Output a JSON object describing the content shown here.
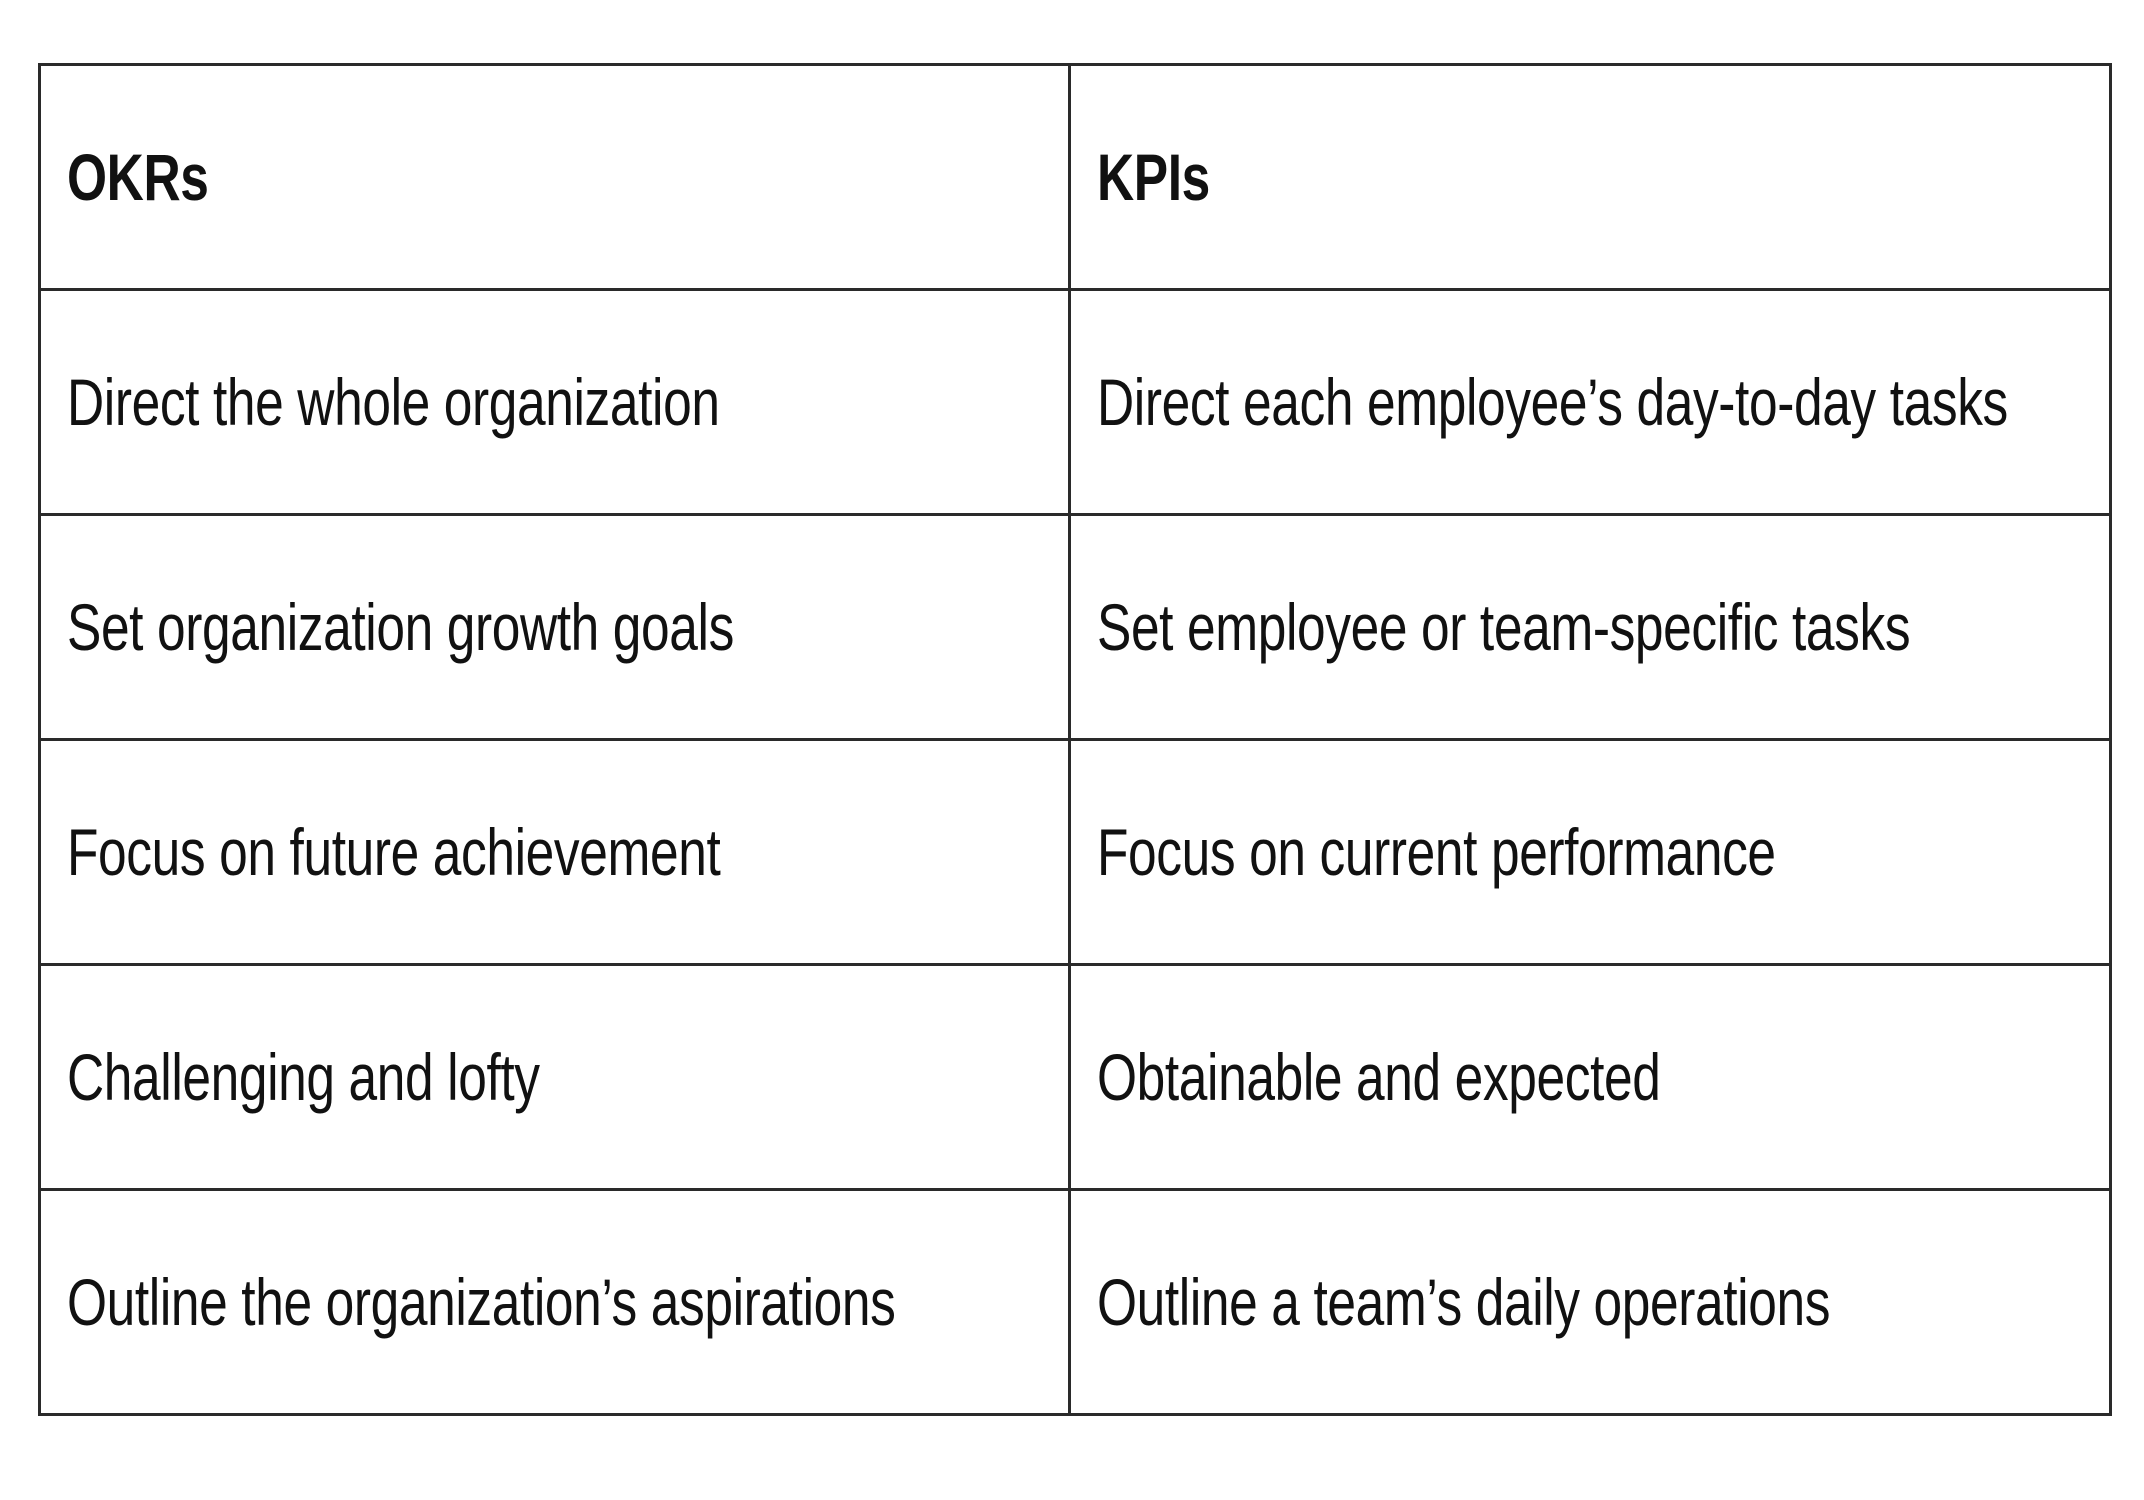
{
  "table": {
    "headers": [
      "OKRs",
      "KPIs"
    ],
    "rows": [
      [
        "Direct the whole organization",
        "Direct each employee’s day-to-day tasks"
      ],
      [
        "Set organization growth goals",
        "Set employee or team-specific tasks"
      ],
      [
        "Focus on future achievement",
        "Focus on current performance"
      ],
      [
        "Challenging and lofty",
        "Obtainable and expected"
      ],
      [
        "Outline the organization’s aspirations",
        "Outline a team’s daily operations"
      ]
    ]
  }
}
